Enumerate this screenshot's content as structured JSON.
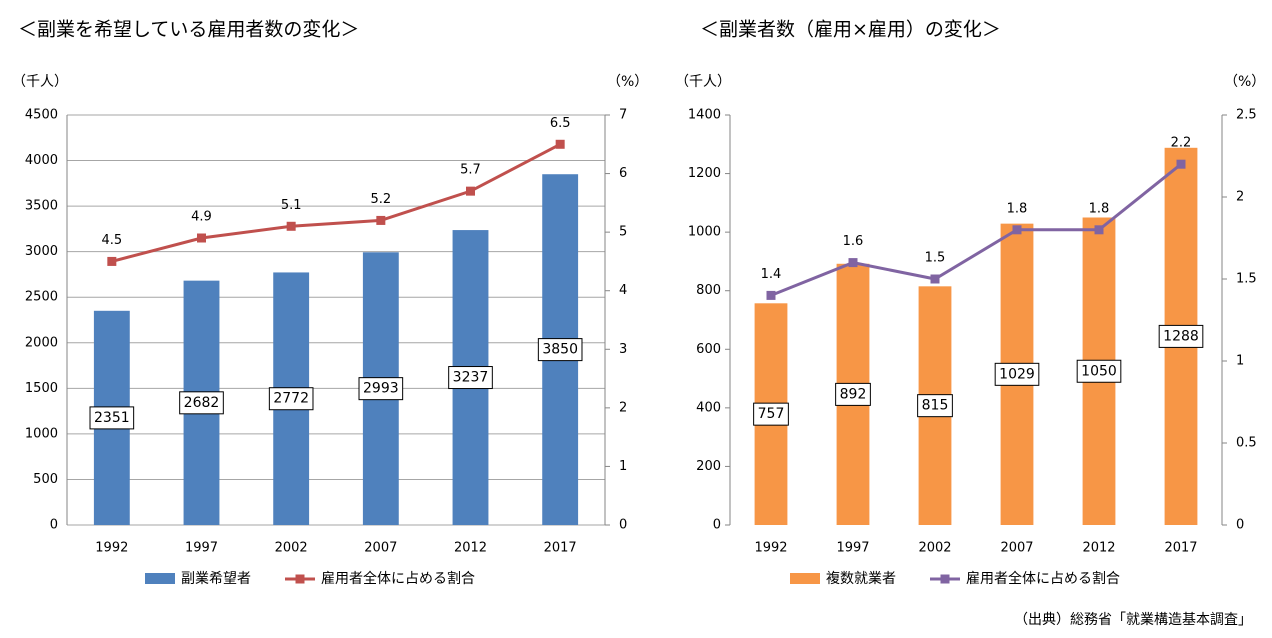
{
  "chart_data": [
    {
      "type": "combo",
      "title": "＜副業を希望している雇用者数の変化＞",
      "y_label": "（千人）",
      "y2_label": "（%）",
      "categories": [
        "1992",
        "1997",
        "2002",
        "2007",
        "2012",
        "2017"
      ],
      "series": [
        {
          "name": "副業希望者",
          "type": "bar",
          "color": "#4f81bd",
          "values": [
            2351,
            2682,
            2772,
            2993,
            3237,
            3850
          ]
        },
        {
          "name": "雇用者全体に占める割合",
          "type": "line",
          "axis": "y2",
          "color": "#c0504d",
          "values": [
            4.5,
            4.9,
            5.1,
            5.2,
            5.7,
            6.5
          ]
        }
      ],
      "ylim": [
        0,
        4500
      ],
      "yticks": [
        0,
        500,
        1000,
        1500,
        2000,
        2500,
        3000,
        3500,
        4000,
        4500
      ],
      "y2lim": [
        0,
        7
      ],
      "y2ticks": [
        0,
        1,
        2,
        3,
        4,
        5,
        6,
        7
      ],
      "grid": true
    },
    {
      "type": "combo",
      "title": "＜副業者数（雇用×雇用）の変化＞",
      "y_label": "（千人）",
      "y2_label": "（%）",
      "categories": [
        "1992",
        "1997",
        "2002",
        "2007",
        "2012",
        "2017"
      ],
      "series": [
        {
          "name": "複数就業者",
          "type": "bar",
          "color": "#f79646",
          "values": [
            757,
            892,
            815,
            1029,
            1050,
            1288
          ]
        },
        {
          "name": "雇用者全体に占める割合",
          "type": "line",
          "axis": "y2",
          "color": "#8064a2",
          "values": [
            1.4,
            1.6,
            1.5,
            1.8,
            1.8,
            2.2
          ]
        }
      ],
      "ylim": [
        0,
        1400
      ],
      "yticks": [
        0,
        200,
        400,
        600,
        800,
        1000,
        1200,
        1400
      ],
      "y2lim": [
        0,
        2.5
      ],
      "y2ticks": [
        0,
        0.5,
        1,
        1.5,
        2,
        2.5
      ],
      "grid": false
    }
  ],
  "source": "（出典）総務省「就業構造基本調査」"
}
